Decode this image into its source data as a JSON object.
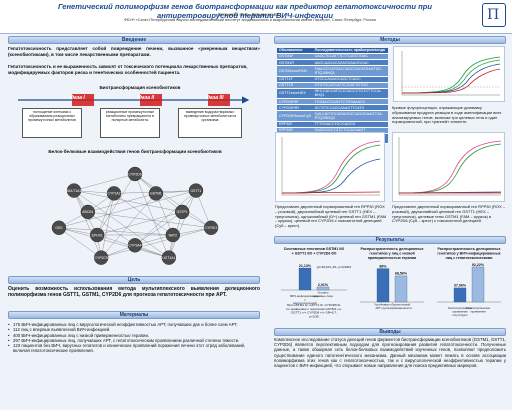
{
  "header": {
    "title": "Генетический полиморфизм генов биотрансформации как предиктор гепатотоксичности при антиретровирусной терапии ВИЧ-инфекции",
    "authors": "Останкова Ю.В., Давыденко В.С.",
    "affiliation": "ФБУН «Санкт-Петербургский научно-исследовательский институт эпидемиологии и микробиологии имени Пастера», Санкт-Петербург, Россия",
    "logo_text": "П"
  },
  "sections": {
    "intro": "Введение",
    "methods": "Методы",
    "goal": "Цель",
    "materials": "Материалы",
    "results": "Результаты",
    "conclusions": "Выводы"
  },
  "intro": {
    "p1": "Гепатотоксичность представляет собой повреждение печени, вызванное «умеренным веществом» (ксенобиотиками), в том числе лекарственными препаратами.",
    "p2": "Гепатотоксичность и ее выраженность зависят от токсического потенциала лекарственных препаратов, модифицируемых факторов риска и генетических особенностей пациента.",
    "scheme_title": "Биотрансформация ксенобиотиков",
    "phase1": "Фаза I",
    "phase2": "Фаза II",
    "phase3": "Фаза III",
    "box1": "поглощение клетками с образованием реакционных промежуточных метаболитов",
    "box2": "реакционные промежуточные метаболиты превращаются в полярные метаболиты",
    "box3": "выведение водорастворимых промежуточных метаболитов из организма",
    "network_title": "Белок-белковые взаимодействия генов биотрансформации ксенобиотиков"
  },
  "network": {
    "nodes": [
      "CYP2D6",
      "GSTM1",
      "GSTT1",
      "GSTP1",
      "CYP2E1",
      "NAT2",
      "UGT1A1",
      "CYP3A4",
      "CYP2C9",
      "EPHX1",
      "GSS",
      "ABCB1",
      "SULT1A1",
      "CYP1A2"
    ]
  },
  "goal": {
    "text": "Оценить возможность использования метода мультиплексного выявления делеционного полиморфизма генов GSTT1, GSTM1, CYP2D6 для прогноза гепатотоксичности при АРТ."
  },
  "materials": {
    "items": [
      "176 ВИЧ-инфицированных лиц с вирусологической неэффективностью АРТ, получавших две и более схем АРТ.",
      "112 лиц с впервые выявленной ВИЧ-инфекцией.",
      "400 ВИЧ-инфицированных лиц с низкой приверженностью терапии.",
      "297 ВИЧ-инфицированных лиц, получавших АРТ, с гепатотоксическим проявлением различной степени тяжести.",
      "123 пациентов без ВИЧ, вирусных гепатитов и клинических проявлений поражения печени этот отряд заболеваний, включая гепатотоксические проявления."
    ]
  },
  "methods": {
    "table_header": [
      "Обозначение",
      "Последовательность праймеров/зонда"
    ],
    "table_rows": [
      [
        "GSTM1F",
        "CAGCTGCATTTCTTCATGTGAC"
      ],
      [
        "GSTM1R",
        "AAGCAAGACAGAGGAAGGGAC"
      ],
      [
        "GSTM1exonFAM",
        "FAM-GCCATGACCAGCCACATGAGTGC-RTQ1/BHQ1"
      ],
      [
        "GSTT1F",
        "GTCCCAGAGCAGCTCAGC"
      ],
      [
        "GSTT1R",
        "GTGTGCATCATTCTCATTGTGG"
      ],
      [
        "GSTT1exonHEX",
        "HEX-CACCATCCCCACCCTGTCTTCCA-BHQ1"
      ],
      [
        "CYP2D6*5F",
        "TGGACCCCAGTCTGGAAACC"
      ],
      [
        "CYP2D6*5R",
        "GCTGTCCAGCAAAGTTCATG"
      ],
      [
        "CYP2D6*5exonCy5",
        "Cy5-CAGTGCAGAGGCCAGGGAAGTGA-RTQ2/BHQ2"
      ],
      [
        "RPP30F",
        "TTTGGACCTGCGAGCG"
      ],
      [
        "RPP30R",
        "GAGCGGCTGTCTCCACAAGT"
      ],
      [
        "RPP30-exonROX",
        "ROX-TTCTGACCTGAAGGCTCTGCGCG-RTQ2/BHQ2"
      ]
    ],
    "curve_caption": "Кривые флуоресценции, отражающие динамику образования продукта реакции в ходе амплификации всех анализируемых генов, включая три целевых гена и один нормировочный, при «ранней» элюенте.",
    "plot1_caption": "Представлен двухгенный нормированный ген RPP30 (ROX – розовый), двухкопийный целевой ген GSTT1 (HEX – треугольник), однокопийный (0/+) целевой ген GSTM1 (FAM – кружок), целевой ген CYP2D6 с гомозиготной делецией (Cy5 – крест).",
    "plot2_caption": "Представлен двухгенный нормированный ген RPP30 (ROX – розовый), двухкопийный целевой ген GSTT1 (HEX – треугольник), целевые гены GSTM1 (FAM – кружок) и CYP2D6 (Cy5 – крест) с гомозиготной делецией."
  },
  "chart_data": [
    {
      "type": "bar",
      "title": "Сочетанных генотипов GSTM1 0/0 + GSTT1 0/0 + CYP2D6 0/0",
      "categories": [
        "ВИЧ-инфицированные с вирусологической неэффективностью АРТ",
        "Условно здоровые лица"
      ],
      "values": [
        21.13,
        2.91
      ],
      "annotation": "χ2=18,103, df1, p=0,0004",
      "note": "При GSTM1 0/- GSTT1 0/- CYP2D6 0/- по сравнению с генотипом GSTM1 +/+ GSTT1 +/+ CYP2D6 +/+ OR=5,7, p<0,05",
      "ylim": [
        0,
        25
      ]
    },
    {
      "type": "bar",
      "title": "Распространенность делеционных генотипов у лиц с низкой приверженностью терапии",
      "categories": [
        "Устойчивые к АРТ группы",
        "Группа низкой приверженности"
      ],
      "values": [
        88,
        68.56
      ],
      "ylim": [
        0,
        100
      ]
    },
    {
      "type": "bar",
      "title": "Распространенность делеционных генотипов у ВИЧ-инфицированных лиц с гепатотоксическими проявлениями",
      "categories": [
        "Гепатотоксические проявления отсутствуют",
        "Гепатотоксические проявления"
      ],
      "values": [
        37.06,
        92.22
      ],
      "ylim": [
        0,
        100
      ]
    }
  ],
  "conclusions": {
    "text": "Комплексное исследование статуса делеций генов ферментов биотрансформации ксенобиотиков (GSTM1, GSTT1, CYP2D6) является перспективным подходом для прогнозирования развития гепатотоксичности. Полученные данные, а также обширная сеть белок-белковых взаимодействий изученных генов, позволяют предположить существование единого патогенетического механизма. Данный механизм может лежать в основе ассоциации полиморфизма этих генов как с гепатотоксичностью, так и с вирусологической неэффективностью терапии у пациентов с ВИЧ-инфекцией, что открывает новые направления для поиска предиктивных маркеров."
  },
  "colors": {
    "accent": "#1b4a8f",
    "bar_blue": "#3a6fb8",
    "bar_light": "#9cb9e2",
    "phase_red": "#d01818"
  }
}
